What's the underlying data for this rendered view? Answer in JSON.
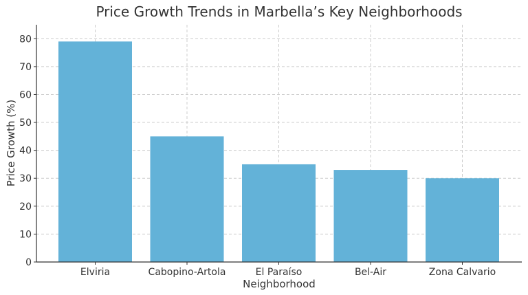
{
  "chart_data": {
    "type": "bar",
    "title": "Price Growth Trends in Marbella’s Key Neighborhoods",
    "xlabel": "Neighborhood",
    "ylabel": "Price Growth (%)",
    "categories": [
      "Elviria",
      "Cabopino-Artola",
      "El Paraíso",
      "Bel-Air",
      "Zona Calvario"
    ],
    "values": [
      79,
      45,
      35,
      33,
      30
    ],
    "ylim": [
      0,
      85
    ],
    "yticks": [
      0,
      10,
      20,
      30,
      40,
      50,
      60,
      70,
      80
    ],
    "grid": true,
    "bar_color": "#63b2d8"
  }
}
